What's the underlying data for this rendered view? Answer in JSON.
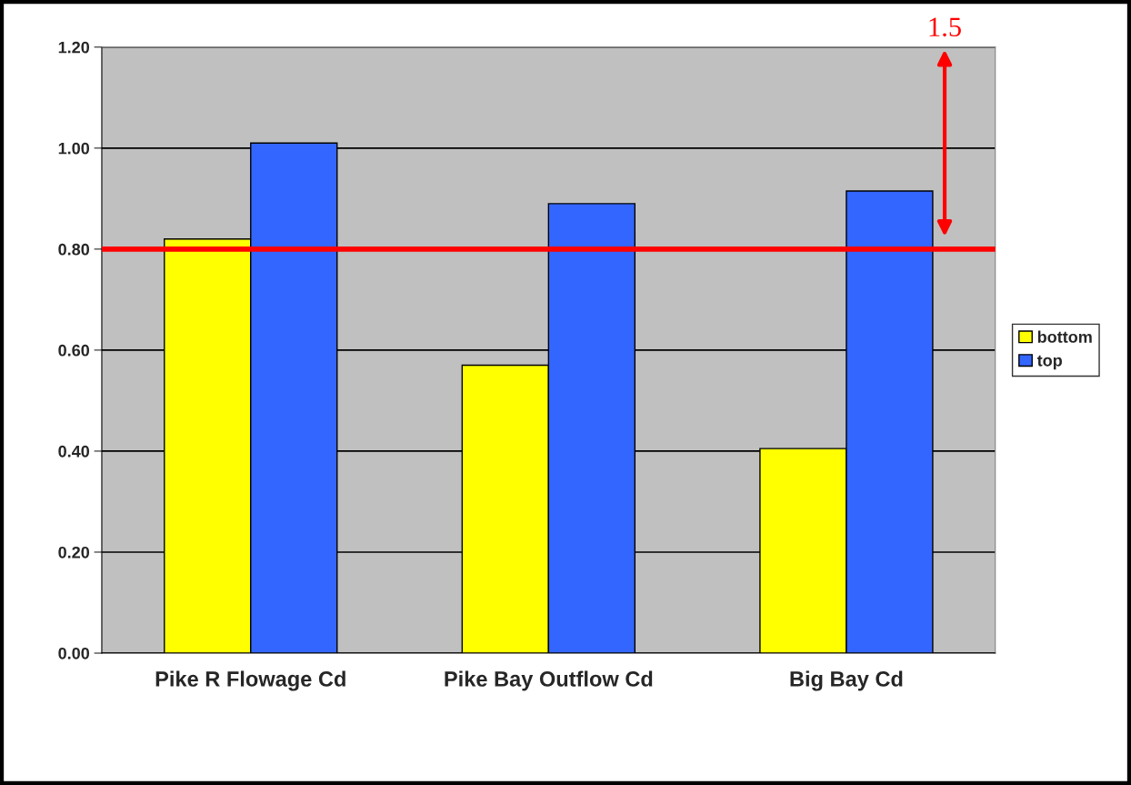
{
  "chart_data": {
    "type": "bar",
    "categories": [
      "Pike R Flowage Cd",
      "Pike Bay Outflow Cd",
      "Big Bay Cd"
    ],
    "series": [
      {
        "name": "bottom",
        "color": "#ffff00",
        "values": [
          0.82,
          0.57,
          0.405
        ]
      },
      {
        "name": "top",
        "color": "#3366ff",
        "values": [
          1.01,
          0.89,
          0.915
        ]
      }
    ],
    "ylim": [
      0,
      1.2
    ],
    "yticks": [
      {
        "value": 0,
        "label": "0.00"
      },
      {
        "value": 0.2,
        "label": "0.20"
      },
      {
        "value": 0.4,
        "label": "0.40"
      },
      {
        "value": 0.6,
        "label": "0.60"
      },
      {
        "value": 0.8,
        "label": "0.80"
      },
      {
        "value": 1.0,
        "label": "1.00"
      },
      {
        "value": 1.2,
        "label": "1.20"
      }
    ],
    "ref_lines": [
      {
        "axis": "y",
        "value": 0.8,
        "color": "#ff0000"
      }
    ],
    "annotations": [
      "1.5"
    ],
    "grid": "y",
    "legend": "right"
  }
}
